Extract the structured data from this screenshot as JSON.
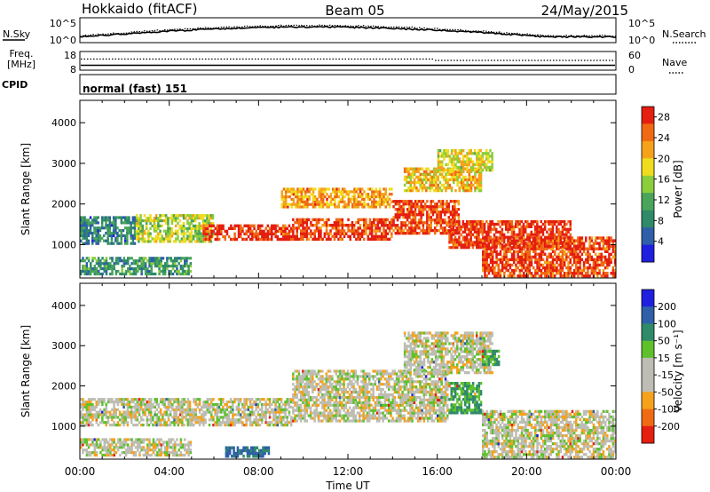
{
  "header": {
    "station": "Hokkaido (fitACF)",
    "beam": "Beam 05",
    "date": "24/May/2015"
  },
  "nsky_panel": {
    "left_label": "N.Sky",
    "right_label": "N.Search",
    "left_ticks": [
      "10^5",
      "10^0"
    ],
    "right_ticks": [
      "10^5",
      "10^0"
    ]
  },
  "freq_panel": {
    "left_label_1": "Freq.",
    "left_label_2": "[MHz]",
    "right_label": "Nave",
    "left_ticks": [
      "18",
      "8"
    ],
    "right_ticks": [
      "60",
      "0"
    ]
  },
  "cpid_panel": {
    "label": "CPID",
    "text": "normal (fast) 151"
  },
  "colors": {
    "power_scale": [
      "#1f1fe0",
      "#2e5fa8",
      "#2f8a6a",
      "#4aa55a",
      "#8ccd3c",
      "#f0dc1e",
      "#f5a21a",
      "#f06a14",
      "#e41e10"
    ],
    "velocity_scale": [
      "#e41e10",
      "#f06a14",
      "#f5a21a",
      "#bdbdb5",
      "#bdbdb5",
      "#5ec12c",
      "#2f8a6a",
      "#2e5fa8",
      "#1f1fe0"
    ]
  },
  "chart_data": [
    {
      "type": "heatmap",
      "title": "",
      "xlabel": "Time UT",
      "ylabel": "Slant Range [km]",
      "x_ticks": [
        "00:00",
        "04:00",
        "08:00",
        "12:00",
        "16:00",
        "20:00",
        "00:00"
      ],
      "y_ticks": [
        "1000",
        "2000",
        "3000",
        "4000"
      ],
      "xlim_hours": [
        0,
        24
      ],
      "ylim_km": [
        180,
        4550
      ],
      "colorbar": {
        "label": "Power [dB]",
        "ticks": [
          "4",
          "8",
          "12",
          "16",
          "20",
          "24",
          "28"
        ],
        "range": [
          0,
          30
        ]
      },
      "regions": [
        {
          "t0": 0.0,
          "t1": 2.5,
          "r0": 1000,
          "r1": 1700,
          "value": 8
        },
        {
          "t0": 2.5,
          "t1": 6.0,
          "r0": 1050,
          "r1": 1750,
          "value": 16
        },
        {
          "t0": 5.5,
          "t1": 9.5,
          "r0": 1100,
          "r1": 1500,
          "value": 28
        },
        {
          "t0": 9.5,
          "t1": 14.0,
          "r0": 1100,
          "r1": 1650,
          "value": 27
        },
        {
          "t0": 9.0,
          "t1": 14.0,
          "r0": 1900,
          "r1": 2400,
          "value": 22
        },
        {
          "t0": 14.0,
          "t1": 17.0,
          "r0": 1250,
          "r1": 2100,
          "value": 27
        },
        {
          "t0": 16.5,
          "t1": 22.0,
          "r0": 900,
          "r1": 1600,
          "value": 28
        },
        {
          "t0": 18.0,
          "t1": 24.0,
          "r0": 200,
          "r1": 1200,
          "value": 27
        },
        {
          "t0": 14.5,
          "t1": 18.0,
          "r0": 2300,
          "r1": 2900,
          "value": 20
        },
        {
          "t0": 16.0,
          "t1": 18.5,
          "r0": 2800,
          "r1": 3350,
          "value": 18
        },
        {
          "t0": 0.0,
          "t1": 5.0,
          "r0": 250,
          "r1": 700,
          "value": 10
        }
      ]
    },
    {
      "type": "heatmap",
      "title": "",
      "xlabel": "Time UT",
      "ylabel": "Slant Range [km]",
      "x_ticks": [
        "00:00",
        "04:00",
        "08:00",
        "12:00",
        "16:00",
        "20:00",
        "00:00"
      ],
      "y_ticks": [
        "1000",
        "2000",
        "3000",
        "4000"
      ],
      "xlim_hours": [
        0,
        24
      ],
      "ylim_km": [
        180,
        4550
      ],
      "colorbar": {
        "label": "Velocity [m s⁻¹]",
        "ticks": [
          "200",
          "100",
          "50",
          "15",
          "-15",
          "-50",
          "-100",
          "-200"
        ],
        "range": [
          -250,
          250
        ]
      },
      "regions": [
        {
          "t0": 0.0,
          "t1": 9.5,
          "r0": 1000,
          "r1": 1700,
          "value": 0
        },
        {
          "t0": 9.5,
          "t1": 16.5,
          "r0": 1100,
          "r1": 2400,
          "value": 0
        },
        {
          "t0": 14.5,
          "t1": 18.5,
          "r0": 2300,
          "r1": 3350,
          "value": 0
        },
        {
          "t0": 16.5,
          "t1": 18.0,
          "r0": 1300,
          "r1": 2100,
          "value": 40
        },
        {
          "t0": 18.0,
          "t1": 18.8,
          "r0": 2500,
          "r1": 2900,
          "value": 40
        },
        {
          "t0": 18.0,
          "t1": 24.0,
          "r0": 200,
          "r1": 1400,
          "value": 0
        },
        {
          "t0": 6.5,
          "t1": 8.5,
          "r0": 220,
          "r1": 500,
          "value": 80
        },
        {
          "t0": 0.0,
          "t1": 5.0,
          "r0": 250,
          "r1": 700,
          "value": 0
        }
      ]
    }
  ]
}
